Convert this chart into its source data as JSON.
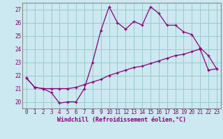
{
  "xlabel": "Windchill (Refroidissement éolien,°C)",
  "background_color": "#cce8f0",
  "grid_color": "#99cccc",
  "line_color": "#880077",
  "spine_color": "#888888",
  "xlim": [
    -0.5,
    23.5
  ],
  "ylim": [
    19.5,
    27.5
  ],
  "x_ticks": [
    0,
    1,
    2,
    3,
    4,
    5,
    6,
    7,
    8,
    9,
    10,
    11,
    12,
    13,
    14,
    15,
    16,
    17,
    18,
    19,
    20,
    21,
    22,
    23
  ],
  "y_ticks": [
    20,
    21,
    22,
    23,
    24,
    25,
    26,
    27
  ],
  "series1_x": [
    0,
    1,
    2,
    3,
    4,
    5,
    6,
    7,
    8,
    9,
    10,
    11,
    12,
    13,
    14,
    15,
    16,
    17,
    18,
    19,
    20,
    21,
    22,
    23
  ],
  "series1_y": [
    21.8,
    21.1,
    21.0,
    20.7,
    19.9,
    20.0,
    20.0,
    21.0,
    23.0,
    25.4,
    27.2,
    26.0,
    25.5,
    26.1,
    25.8,
    27.2,
    26.7,
    25.8,
    25.8,
    25.3,
    25.1,
    24.1,
    23.5,
    22.5
  ],
  "series2_x": [
    0,
    1,
    2,
    3,
    4,
    5,
    6,
    7,
    8,
    9,
    10,
    11,
    12,
    13,
    14,
    15,
    16,
    17,
    18,
    19,
    20,
    21,
    22,
    23
  ],
  "series2_y": [
    21.8,
    21.1,
    21.0,
    21.0,
    21.0,
    21.0,
    21.1,
    21.3,
    21.5,
    21.7,
    22.0,
    22.2,
    22.4,
    22.6,
    22.7,
    22.9,
    23.1,
    23.3,
    23.5,
    23.6,
    23.8,
    24.0,
    22.4,
    22.5
  ],
  "tick_fontsize": 5.5,
  "xlabel_fontsize": 6.0
}
